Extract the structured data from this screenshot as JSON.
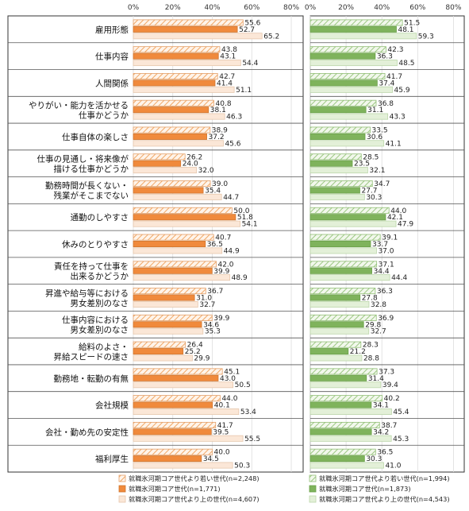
{
  "chart_data": [
    {
      "type": "bar",
      "orientation": "horizontal",
      "xlim": [
        0,
        80
      ],
      "ticks": [
        "0%",
        "20%",
        "40%",
        "60%",
        "80%"
      ],
      "grid": true,
      "legend_position": "bottom",
      "categories": [
        [
          "雇用形態"
        ],
        [
          "仕事内容"
        ],
        [
          "人間関係"
        ],
        [
          "やりがい・能力を活かせる",
          "仕事かどうか"
        ],
        [
          "仕事自体の楽しさ"
        ],
        [
          "仕事の見通し・将来像が",
          "描ける仕事かどうか"
        ],
        [
          "勤務時間が長くない・",
          "残業がそこまでない"
        ],
        [
          "通勤のしやすさ"
        ],
        [
          "休みのとりやすさ"
        ],
        [
          "責任を持って仕事を",
          "出来るかどうか"
        ],
        [
          "昇進や給与等における",
          "男女差別のなさ"
        ],
        [
          "仕事内容における",
          "男女差別のなさ"
        ],
        [
          "給料のよさ・",
          "昇給スピードの速さ"
        ],
        [
          "勤務地・転勤の有無"
        ],
        [
          "会社規模"
        ],
        [
          "会社・勤め先の安定性"
        ],
        [
          "福利厚生"
        ]
      ],
      "series": [
        {
          "name": "就職氷河期コア世代より若い世代(n=2,248)",
          "color": "#f0b07a",
          "pattern": "hatched",
          "values": [
            55.6,
            43.8,
            42.7,
            40.8,
            38.9,
            26.2,
            39.0,
            50.0,
            40.7,
            42.0,
            36.7,
            39.9,
            26.4,
            45.1,
            44.0,
            41.7,
            40.0
          ]
        },
        {
          "name": "就職氷河期コア世代(n=1,771)",
          "color": "#f08a3c",
          "pattern": "solid",
          "values": [
            52.7,
            43.1,
            41.4,
            38.1,
            37.2,
            24.0,
            35.4,
            51.8,
            36.5,
            39.9,
            31.0,
            34.6,
            25.2,
            43.0,
            40.1,
            39.5,
            34.5
          ]
        },
        {
          "name": "就職氷河期コア世代より上の世代(n=4,607)",
          "color": "#fbe7d7",
          "pattern": "light",
          "values": [
            65.2,
            54.4,
            51.1,
            46.3,
            45.6,
            32.0,
            44.7,
            54.1,
            44.9,
            48.9,
            32.7,
            35.3,
            29.9,
            50.5,
            53.4,
            55.5,
            50.3
          ]
        }
      ]
    },
    {
      "type": "bar",
      "orientation": "horizontal",
      "xlim": [
        0,
        80
      ],
      "ticks": [
        "0%",
        "20%",
        "40%",
        "60%",
        "80%"
      ],
      "grid": true,
      "legend_position": "bottom",
      "series": [
        {
          "name": "就職氷河期コア世代より若い世代(n=1,994)",
          "color": "#a8cf90",
          "pattern": "hatched",
          "values": [
            51.5,
            42.3,
            41.7,
            36.8,
            33.5,
            28.5,
            34.7,
            44.0,
            39.1,
            37.1,
            36.3,
            36.9,
            28.3,
            37.3,
            40.2,
            38.7,
            36.5
          ]
        },
        {
          "name": "就職氷河期コア世代(n=1,873)",
          "color": "#7fb35c",
          "pattern": "solid",
          "values": [
            48.1,
            36.3,
            37.4,
            31.1,
            30.6,
            23.5,
            27.7,
            42.1,
            33.7,
            34.4,
            27.8,
            29.8,
            21.2,
            31.4,
            34.1,
            34.2,
            30.3
          ]
        },
        {
          "name": "就職氷河期コア世代より上の世代(n=4,543)",
          "color": "#e3f0d8",
          "pattern": "light",
          "values": [
            59.3,
            48.5,
            45.9,
            43.3,
            41.1,
            32.1,
            30.3,
            47.9,
            37.0,
            44.4,
            32.8,
            32.7,
            28.8,
            39.4,
            45.4,
            45.3,
            41.0
          ]
        }
      ]
    }
  ]
}
